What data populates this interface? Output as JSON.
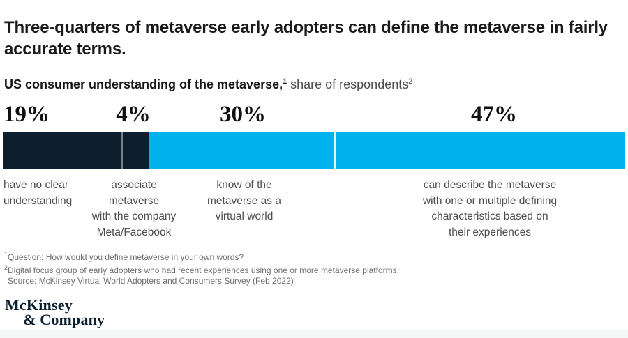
{
  "header": {
    "title": "Three-quarters of metaverse early adopters can define the metaverse in fairly\naccurate terms.",
    "subtitle": {
      "bold": "US consumer understanding of the metaverse,",
      "sup1": "1",
      "rest": " share of respondents",
      "sup2": "2"
    }
  },
  "chart_data": {
    "type": "bar",
    "variant": "horizontal_stacked_100_percent",
    "title": "US consumer understanding of the metaverse, share of respondents",
    "unit": "percent",
    "total": 100,
    "categories": [
      "have no clear understanding",
      "associate metaverse with the company Meta/Facebook",
      "know of the metaverse as a virtual world",
      "can describe the metaverse with one or multiple defining characteristics based on their experiences"
    ],
    "values": [
      19,
      4,
      30,
      47
    ],
    "segments": [
      {
        "value": 19,
        "value_label": "19%",
        "color": "#0d1e2d",
        "description": "have no clear\nunderstanding"
      },
      {
        "value": 4,
        "value_label": "4%",
        "color": "#0d1e2d",
        "description": "associate\nmetaverse\nwith the company\nMeta/Facebook"
      },
      {
        "value": 30,
        "value_label": "30%",
        "color": "#00b2ee",
        "description": "know of the\nmetaverse as a\nvirtual world"
      },
      {
        "value": 47,
        "value_label": "47%",
        "color": "#00b2ee",
        "description": "can describe the metaverse\nwith one or multiple defining\ncharacteristics based on\ntheir experiences"
      }
    ],
    "colors": {
      "dark_navy": "#0d1e2d",
      "cyan": "#00b2ee"
    },
    "legend": "none",
    "axes": "none",
    "grid": false
  },
  "footnotes": [
    {
      "sup": "1",
      "text": "Question: How would you define metaverse in your own words?"
    },
    {
      "sup": "2",
      "text": "Digital focus group of early adopters who had recent experiences using one or more metaverse platforms."
    },
    {
      "sup": "",
      "text": "Source: McKinsey Virtual World Adopters and Consumers Survey (Feb 2022)"
    }
  ],
  "logo": {
    "line1": "McKinsey",
    "line2": "& Company"
  }
}
